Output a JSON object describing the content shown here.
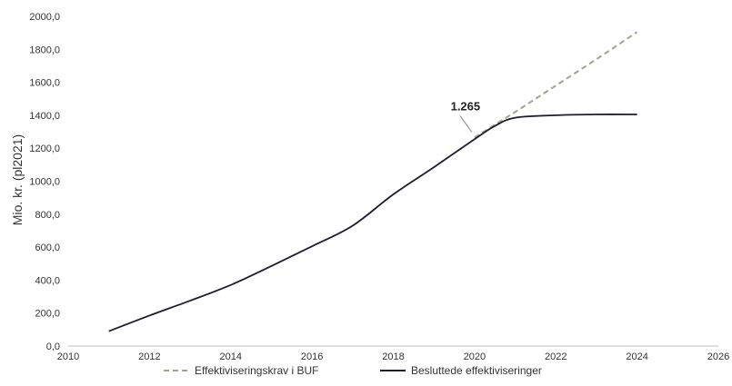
{
  "chart_data": {
    "type": "line",
    "ylabel": "Mio. kr. (pl2021)",
    "xlim": [
      2010,
      2026
    ],
    "ylim": [
      0,
      2000
    ],
    "x_ticks": [
      "2010",
      "2012",
      "2014",
      "2016",
      "2018",
      "2020",
      "2022",
      "2024",
      "2026"
    ],
    "y_ticks": [
      "0,0",
      "200,0",
      "400,0",
      "600,0",
      "800,0",
      "1000,0",
      "1200,0",
      "1400,0",
      "1600,0",
      "1800,0",
      "2000,0"
    ],
    "grid": false,
    "legend_position": "bottom",
    "series": [
      {
        "name": "Effektiviseringskrav i BUF",
        "style": "dashed",
        "color": "#a89f8c",
        "x": [
          2020,
          2021,
          2022,
          2023,
          2024
        ],
        "y": [
          1265,
          1420,
          1580,
          1740,
          1905
        ]
      },
      {
        "name": "Besluttede effektiviseringer",
        "style": "solid",
        "color": "#1d1d2e",
        "x": [
          2011,
          2012,
          2013,
          2014,
          2015,
          2016,
          2017,
          2018,
          2019,
          2020,
          2020.5,
          2021,
          2022,
          2023,
          2024
        ],
        "y": [
          90,
          185,
          275,
          370,
          485,
          605,
          730,
          920,
          1085,
          1255,
          1335,
          1385,
          1400,
          1405,
          1405
        ]
      }
    ],
    "annotations": [
      {
        "text": "1.265",
        "x": 2020,
        "y": 1265
      }
    ]
  }
}
